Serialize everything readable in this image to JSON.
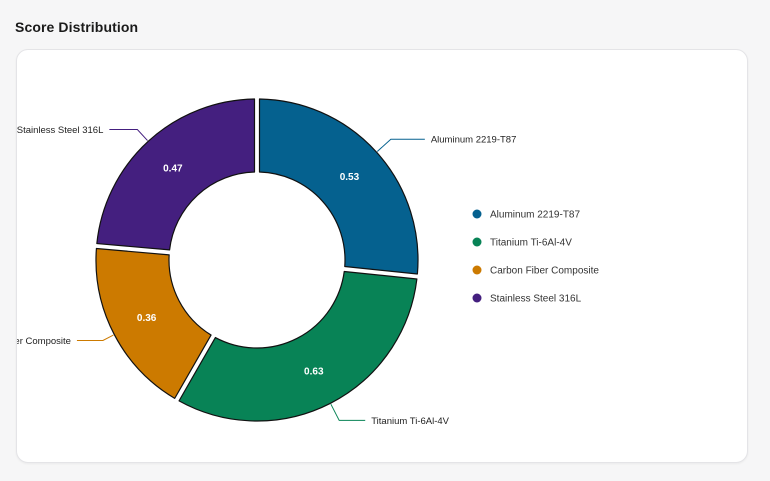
{
  "header": {
    "title": "Score Distribution"
  },
  "chart_data": {
    "type": "pie",
    "donut": true,
    "title": "Score Distribution",
    "legend_position": "right",
    "slices": [
      {
        "label": "Aluminum 2219-T87",
        "value": 0.53,
        "color": "#05618f"
      },
      {
        "label": "Titanium Ti-6Al-4V",
        "value": 0.63,
        "color": "#088356"
      },
      {
        "label": "Carbon Fiber Composite",
        "value": 0.36,
        "color": "#cc7a00"
      },
      {
        "label": "Stainless Steel 316L",
        "value": 0.47,
        "color": "#441f7f"
      }
    ]
  }
}
